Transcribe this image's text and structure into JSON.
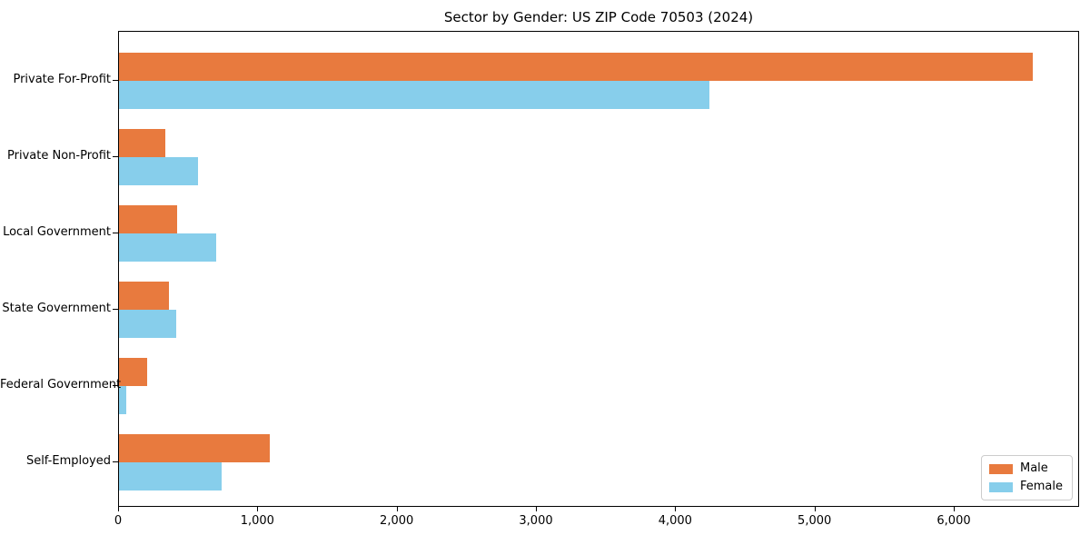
{
  "figure": {
    "background": "#ffffff"
  },
  "chart_data": {
    "type": "bar",
    "orientation": "horizontal",
    "title": "Sector by Gender: US ZIP Code 70503 (2024)",
    "categories": [
      "Private For-Profit",
      "Private Non-Profit",
      "Local Government",
      "State Government",
      "Federal Government",
      "Self-Employed"
    ],
    "series": [
      {
        "name": "Male",
        "color": "#e87a3e",
        "values": [
          6560,
          330,
          420,
          360,
          200,
          1080
        ]
      },
      {
        "name": "Female",
        "color": "#87ceeb",
        "values": [
          4240,
          570,
          700,
          410,
          50,
          740
        ]
      }
    ],
    "xlim": [
      0,
      6900
    ],
    "xticks": [
      0,
      1000,
      2000,
      3000,
      4000,
      5000,
      6000
    ],
    "xtick_labels": [
      "0",
      "1,000",
      "2,000",
      "3,000",
      "4,000",
      "5,000",
      "6,000"
    ],
    "xlabel": "",
    "ylabel": "",
    "grid": false,
    "legend": {
      "position": "lower-right",
      "entries": [
        "Male",
        "Female"
      ]
    },
    "axis_color": "#000000",
    "text_color": "#000000"
  }
}
